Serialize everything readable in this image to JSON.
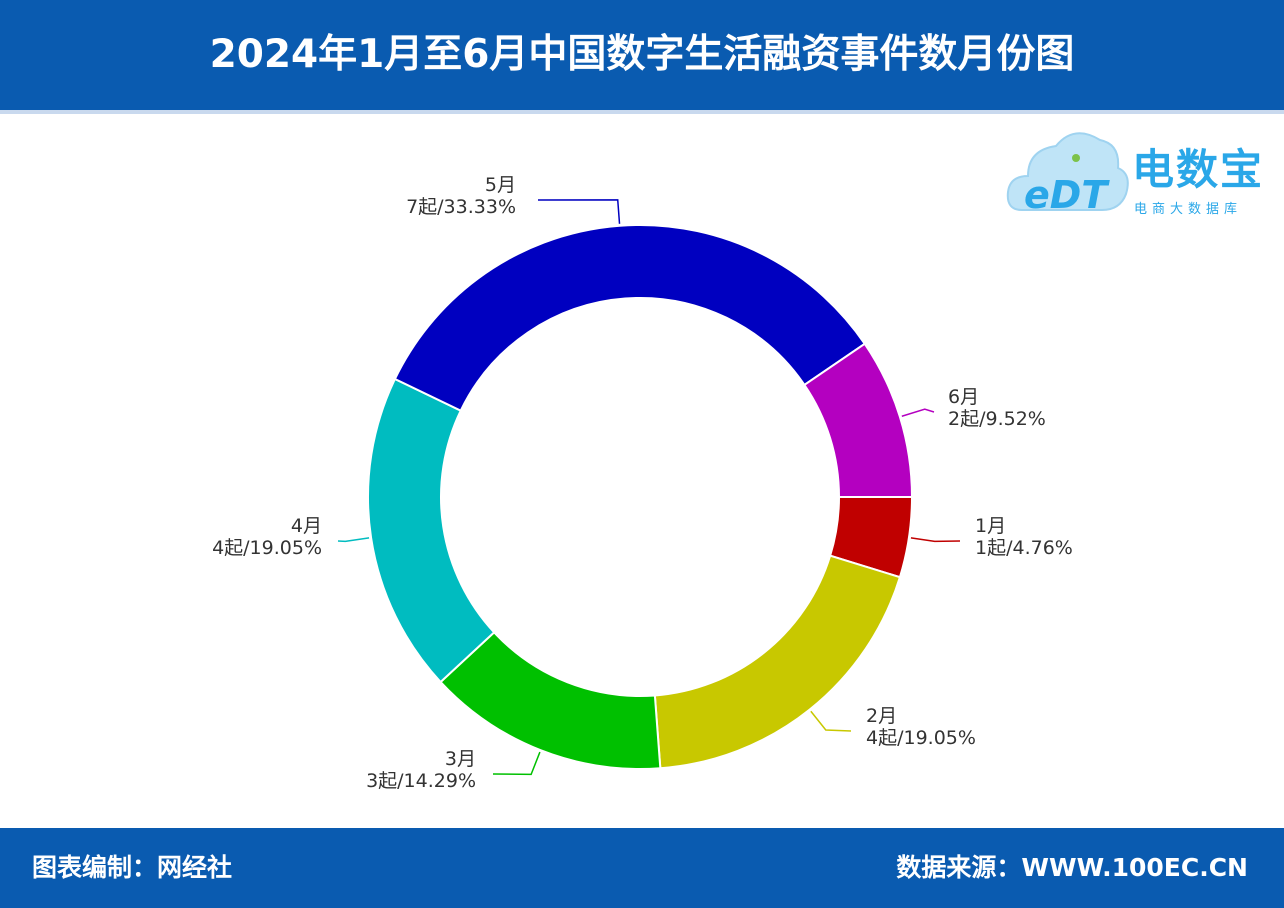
{
  "header": {
    "title": "2024年1月至6月中国数字生活融资事件数月份图"
  },
  "footer": {
    "left": "图表编制：网经社",
    "right": "数据来源：WWW.100EC.CN"
  },
  "logo": {
    "mark": "eDT",
    "name": "电数宝",
    "subtitle": "电商大数据库",
    "icon": "cloud-logo-icon"
  },
  "chart_data": {
    "type": "pie",
    "variant": "donut",
    "title": "2024年1月至6月中国数字生活融资事件数月份图",
    "unit": "起",
    "slices": [
      {
        "label": "1月",
        "value": 1,
        "percent": "4.76%",
        "text": "1起/4.76%",
        "color": "#c00000"
      },
      {
        "label": "2月",
        "value": 4,
        "percent": "19.05%",
        "text": "4起/19.05%",
        "color": "#c8c800"
      },
      {
        "label": "3月",
        "value": 3,
        "percent": "14.29%",
        "text": "3起/14.29%",
        "color": "#00c000"
      },
      {
        "label": "4月",
        "value": 4,
        "percent": "19.05%",
        "text": "4起/19.05%",
        "color": "#00bcc0"
      },
      {
        "label": "5月",
        "value": 7,
        "percent": "33.33%",
        "text": "7起/33.33%",
        "color": "#0000c0"
      },
      {
        "label": "6月",
        "value": 2,
        "percent": "9.52%",
        "text": "2起/9.52%",
        "color": "#b400c0"
      }
    ]
  }
}
